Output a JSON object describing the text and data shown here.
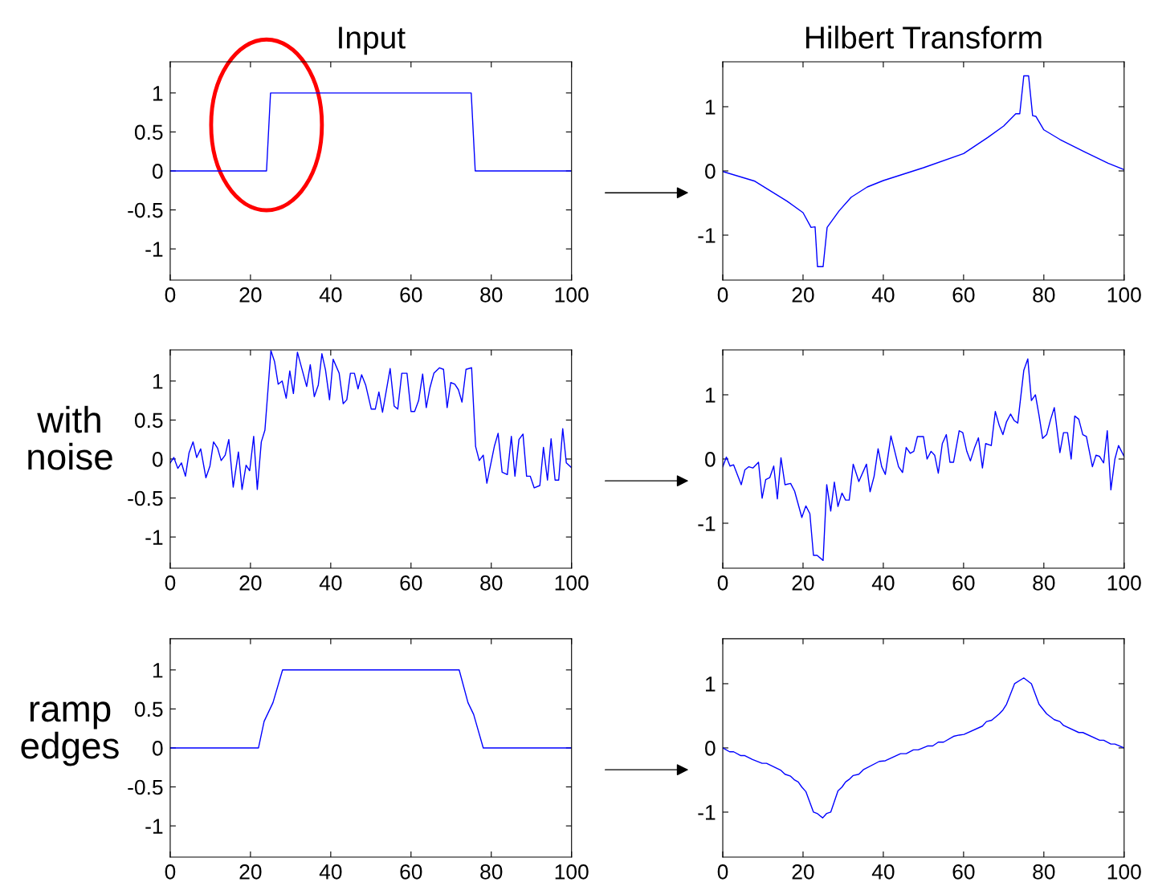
{
  "chart_data": [
    {
      "type": "line",
      "title": "Input",
      "color": "#0000ff",
      "xlim": [
        0,
        100
      ],
      "xticks": [
        0,
        20,
        40,
        60,
        80,
        100
      ],
      "ylim": [
        -1.4,
        1.4
      ],
      "yticks": [
        -1,
        -0.5,
        0,
        0.5,
        1
      ],
      "x": [
        0,
        24,
        25,
        75,
        76,
        100
      ],
      "values": [
        0,
        0,
        1,
        1,
        0,
        0
      ]
    },
    {
      "type": "line",
      "title": "Hilbert Transform",
      "color": "#0000ff",
      "xlim": [
        0,
        100
      ],
      "xticks": [
        0,
        20,
        40,
        60,
        80,
        100
      ],
      "ylim": [
        -1.7,
        1.7
      ],
      "yticks": [
        -1,
        0,
        1
      ],
      "x": [
        0,
        8,
        16,
        20,
        22,
        23,
        23.6,
        25,
        26,
        29,
        32,
        36,
        40,
        50,
        60,
        66,
        70,
        73,
        74,
        75,
        76.2,
        77.2,
        78,
        80,
        84,
        90,
        96,
        100
      ],
      "values": [
        -0.01,
        -0.16,
        -0.47,
        -0.65,
        -0.88,
        -0.87,
        -1.49,
        -1.49,
        -0.88,
        -0.62,
        -0.41,
        -0.25,
        -0.15,
        0.05,
        0.27,
        0.52,
        0.7,
        0.89,
        0.89,
        1.48,
        1.48,
        0.86,
        0.85,
        0.64,
        0.49,
        0.3,
        0.12,
        0.02
      ]
    },
    {
      "type": "line",
      "ylabel": "with\nnoise",
      "color": "#0000ff",
      "xlim": [
        0,
        100
      ],
      "xticks": [
        0,
        20,
        40,
        60,
        80,
        100
      ],
      "ylim": [
        -1.4,
        1.4
      ],
      "yticks": [
        -1,
        -0.5,
        0,
        0.5,
        1
      ],
      "x": [
        0,
        0.9,
        1.9,
        2.8,
        3.8,
        4.7,
        5.7,
        6.6,
        7.6,
        8.9,
        9.9,
        10.8,
        11.8,
        12.7,
        13.7,
        14.6,
        15.7,
        17,
        17.9,
        18.9,
        19.8,
        20.8,
        21.7,
        22.7,
        23.6,
        25.1,
        26,
        26.9,
        27.9,
        28.9,
        29.8,
        30.7,
        31.7,
        34,
        34.9,
        35.9,
        36.9,
        37.8,
        38.7,
        39.7,
        40.6,
        42.1,
        43.1,
        44,
        44.9,
        45.9,
        46.8,
        47.7,
        48.7,
        50.1,
        51.1,
        52,
        52.9,
        54.8,
        55.8,
        56.7,
        57.7,
        59,
        60,
        60.9,
        61.9,
        62.9,
        63.8,
        64.7,
        65.7,
        67.1,
        68.1,
        69,
        69.9,
        70.9,
        71.8,
        72.7,
        73.7,
        75.1,
        76.1,
        77,
        78,
        78.9,
        80.8,
        81.7,
        82.7,
        84,
        85,
        85.9,
        86.9,
        87.9,
        88.8,
        89.7,
        90.7,
        92.1,
        93,
        94,
        94.9,
        95.9,
        96.8,
        97.8,
        98.7,
        100
      ],
      "values": [
        -0.05,
        0.02,
        -0.12,
        -0.05,
        -0.22,
        0.08,
        0.22,
        0.02,
        0.13,
        -0.24,
        -0.09,
        0.22,
        0.14,
        -0.02,
        0.05,
        0.25,
        -0.36,
        0.09,
        -0.39,
        -0.08,
        -0.15,
        0.29,
        -0.39,
        0.22,
        0.37,
        1.39,
        1.25,
        0.96,
        1.0,
        0.78,
        1.13,
        0.84,
        1.37,
        0.93,
        1.21,
        0.8,
        0.95,
        1.35,
        1.14,
        0.76,
        1.28,
        1.1,
        0.71,
        0.76,
        1.1,
        1.1,
        0.9,
        1.08,
        0.95,
        0.64,
        0.64,
        0.86,
        0.6,
        1.16,
        0.68,
        0.64,
        1.1,
        1.1,
        0.61,
        0.61,
        0.75,
        1.09,
        0.66,
        0.91,
        1.1,
        1.17,
        1.15,
        0.66,
        0.98,
        0.96,
        0.89,
        0.73,
        1.15,
        1.17,
        0.16,
        -0.02,
        0.05,
        -0.31,
        0.17,
        0.33,
        -0.17,
        -0.2,
        0.29,
        -0.22,
        0.25,
        0.32,
        -0.22,
        -0.22,
        -0.37,
        -0.34,
        0.15,
        -0.27,
        0.26,
        -0.27,
        -0.27,
        0.39,
        -0.05,
        -0.11
      ]
    },
    {
      "type": "line",
      "color": "#0000ff",
      "xlim": [
        0,
        100
      ],
      "xticks": [
        0,
        20,
        40,
        60,
        80,
        100
      ],
      "ylim": [
        -1.7,
        1.7
      ],
      "yticks": [
        -1,
        0,
        1
      ],
      "x": [
        0,
        0.9,
        1.8,
        2.7,
        4.6,
        5.5,
        6.5,
        7.5,
        8.9,
        9.8,
        10.7,
        11.7,
        12.7,
        13.6,
        14.5,
        15.5,
        16.9,
        17.9,
        19.7,
        20.7,
        21.7,
        22.6,
        23.5,
        25,
        25.9,
        26.9,
        27.8,
        28.7,
        29.7,
        30.6,
        31.5,
        32.5,
        33.9,
        35.8,
        36.7,
        37.7,
        38.7,
        39.6,
        40.5,
        41.9,
        43.8,
        44.8,
        45.7,
        46.7,
        47.6,
        48.5,
        50,
        50.9,
        51.9,
        52.8,
        53.7,
        54.7,
        55.7,
        56.6,
        57.5,
        58.9,
        59.8,
        60.8,
        61.7,
        62.7,
        63.7,
        64.7,
        65.5,
        66.9,
        67.9,
        68.9,
        69.8,
        70.7,
        71.7,
        72.6,
        73.5,
        75,
        76,
        76.9,
        77.9,
        78.8,
        79.7,
        80.7,
        81.7,
        82.6,
        84,
        84.9,
        85.9,
        86.8,
        87.7,
        88.7,
        89.7,
        90.6,
        92.1,
        93,
        93.9,
        94.9,
        95.8,
        96.7,
        97.7,
        98.6,
        100
      ],
      "values": [
        -0.12,
        0.03,
        -0.11,
        -0.09,
        -0.4,
        -0.17,
        -0.12,
        -0.14,
        -0.05,
        -0.61,
        -0.32,
        -0.29,
        -0.11,
        -0.62,
        0.02,
        -0.4,
        -0.38,
        -0.5,
        -0.91,
        -0.73,
        -0.85,
        -1.5,
        -1.5,
        -1.58,
        -0.4,
        -0.81,
        -0.36,
        -0.74,
        -0.53,
        -0.64,
        -0.64,
        -0.08,
        -0.35,
        -0.08,
        -0.51,
        -0.27,
        0.16,
        -0.12,
        -0.24,
        0.36,
        -0.12,
        -0.21,
        0.18,
        0.09,
        0.12,
        0.35,
        0.35,
        0,
        0.12,
        0.06,
        -0.22,
        0.24,
        0.38,
        -0.05,
        -0.05,
        0.44,
        0.41,
        0.12,
        -0.03,
        0.17,
        0.33,
        -0.14,
        0.24,
        0.21,
        0.74,
        0.52,
        0.38,
        0.58,
        0.7,
        0.6,
        0.56,
        1.38,
        1.56,
        0.91,
        1.0,
        0.68,
        0.32,
        0.38,
        0.62,
        0.8,
        0.1,
        0.41,
        0.41,
        0,
        0.67,
        0.62,
        0.38,
        0.35,
        -0.12,
        0.06,
        0.04,
        -0.06,
        0.44,
        -0.48,
        0,
        0.21,
        0.04
      ]
    },
    {
      "type": "line",
      "ylabel": "ramp\nedges",
      "color": "#0000ff",
      "xlim": [
        0,
        100
      ],
      "xticks": [
        0,
        20,
        40,
        60,
        80,
        100
      ],
      "ylim": [
        -1.4,
        1.4
      ],
      "yticks": [
        -1,
        -0.5,
        0,
        0.5,
        1
      ],
      "x": [
        0,
        22,
        23.4,
        25.6,
        28,
        72,
        74.2,
        75.6,
        78,
        100
      ],
      "values": [
        0,
        0,
        0.34,
        0.58,
        1,
        1,
        0.58,
        0.43,
        0,
        0
      ]
    },
    {
      "type": "line",
      "color": "#0000ff",
      "xlim": [
        0,
        100
      ],
      "xticks": [
        0,
        20,
        40,
        60,
        80,
        100
      ],
      "ylim": [
        -1.7,
        1.7
      ],
      "yticks": [
        -1,
        0,
        1
      ],
      "x": [
        0,
        1.7,
        2.7,
        4.5,
        5.5,
        7.4,
        9.8,
        10.9,
        14.5,
        15.5,
        16.9,
        17.9,
        18.8,
        19.7,
        20.7,
        22.6,
        23.5,
        24.9,
        25.9,
        26.9,
        28.7,
        29.7,
        30.6,
        31.5,
        32.5,
        33.9,
        35,
        39,
        40.5,
        44.3,
        45.7,
        47.5,
        48.7,
        51,
        52.3,
        53.7,
        55,
        57.5,
        58.9,
        60.1,
        64.7,
        65.7,
        67,
        68.9,
        69.8,
        70.7,
        72.7,
        75,
        76.9,
        78.8,
        80.7,
        82.6,
        84,
        84.9,
        88.7,
        89.7,
        93.9,
        94.9,
        96.7,
        97.7,
        100
      ],
      "values": [
        0,
        -0.06,
        -0.06,
        -0.12,
        -0.12,
        -0.18,
        -0.24,
        -0.24,
        -0.35,
        -0.41,
        -0.44,
        -0.5,
        -0.53,
        -0.61,
        -0.68,
        -1.0,
        -1.02,
        -1.09,
        -1.02,
        -1.0,
        -0.67,
        -0.61,
        -0.53,
        -0.49,
        -0.43,
        -0.41,
        -0.34,
        -0.21,
        -0.2,
        -0.09,
        -0.09,
        -0.03,
        -0.03,
        0.03,
        0.03,
        0.09,
        0.09,
        0.18,
        0.2,
        0.21,
        0.34,
        0.41,
        0.43,
        0.53,
        0.59,
        0.68,
        1.0,
        1.09,
        1.0,
        0.68,
        0.53,
        0.44,
        0.41,
        0.35,
        0.24,
        0.24,
        0.12,
        0.12,
        0.06,
        0.06,
        0
      ]
    }
  ]
}
